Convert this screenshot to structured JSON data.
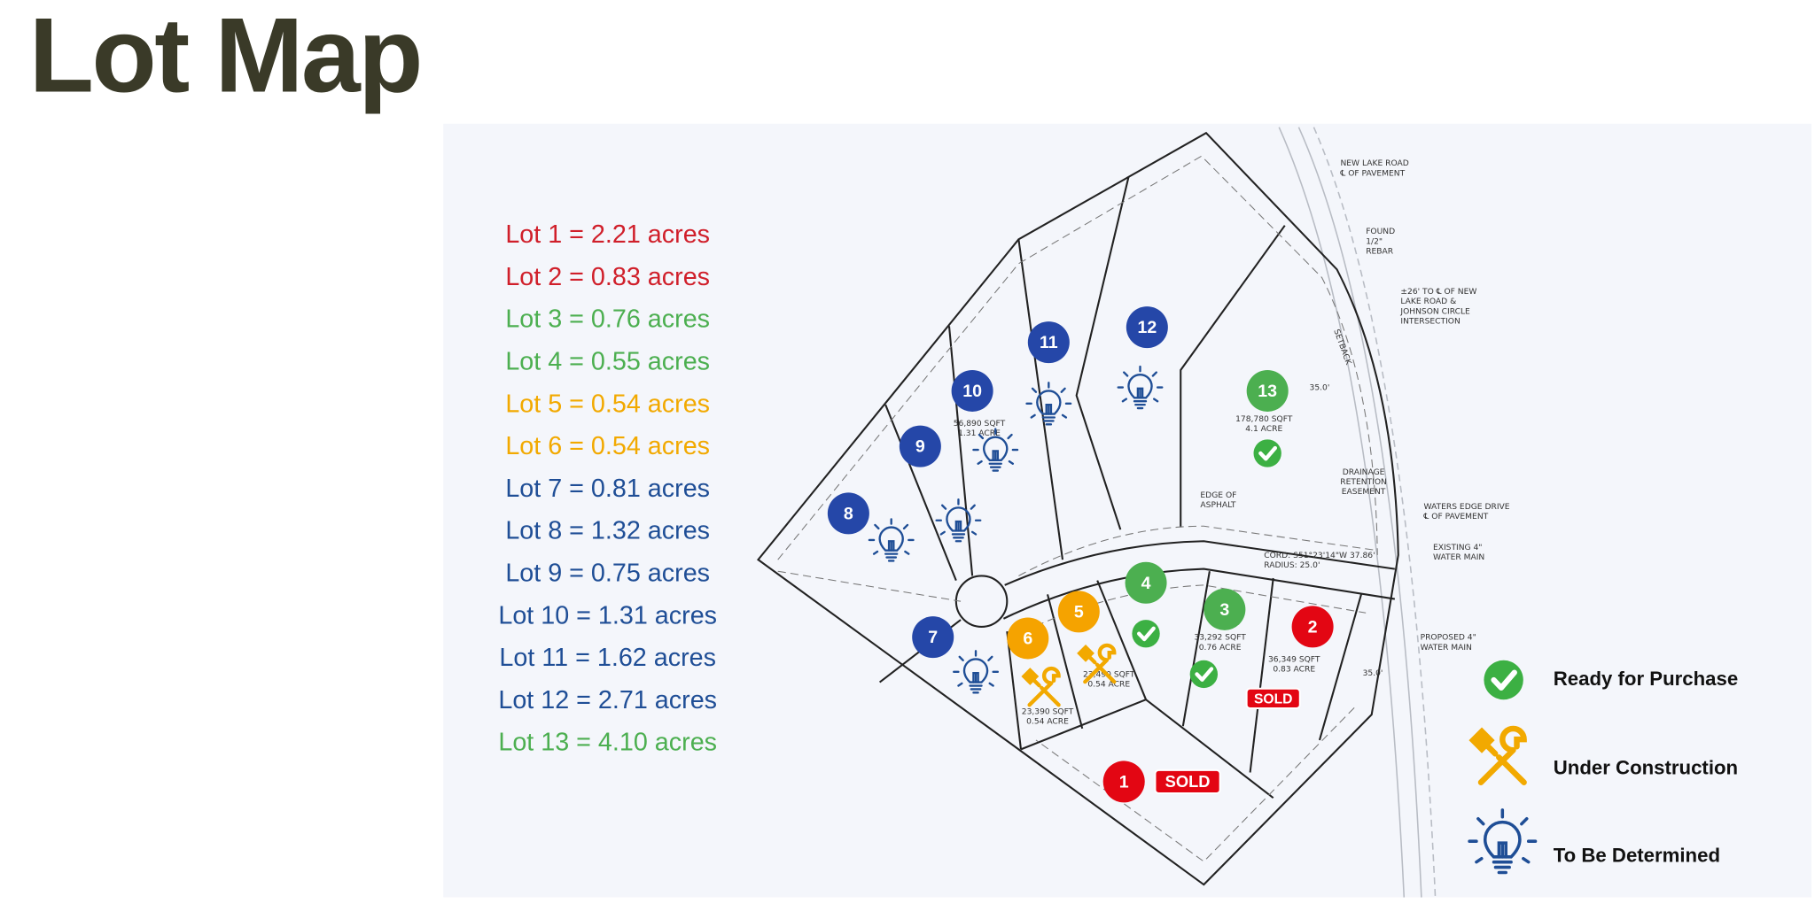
{
  "title": "Lot Map",
  "lots": [
    {
      "text": "Lot 1 = 2.21 acres",
      "color": "#d01f2a"
    },
    {
      "text": "Lot 2 = 0.83 acres",
      "color": "#d01f2a"
    },
    {
      "text": "Lot 3 = 0.76 acres",
      "color": "#4caf50"
    },
    {
      "text": "Lot 4 = 0.55 acres",
      "color": "#4caf50"
    },
    {
      "text": "Lot 5 = 0.54 acres",
      "color": "#f2a900"
    },
    {
      "text": "Lot 6 = 0.54 acres",
      "color": "#f2a900"
    },
    {
      "text": "Lot 7 = 0.81 acres",
      "color": "#1f4e96"
    },
    {
      "text": "Lot 8 = 1.32 acres",
      "color": "#1f4e96"
    },
    {
      "text": "Lot 9 = 0.75 acres",
      "color": "#1f4e96"
    },
    {
      "text": "Lot 10 = 1.31 acres",
      "color": "#1f4e96"
    },
    {
      "text": "Lot 11 = 1.62 acres",
      "color": "#1f4e96"
    },
    {
      "text": "Lot 12 = 2.71 acres",
      "color": "#1f4e96"
    },
    {
      "text": "Lot 13 = 4.10 acres",
      "color": "#4caf50"
    }
  ],
  "markers": [
    {
      "label": "1",
      "color": "#e30613"
    },
    {
      "label": "2",
      "color": "#e30613"
    },
    {
      "label": "3",
      "color": "#4caf50"
    },
    {
      "label": "4",
      "color": "#4caf50"
    },
    {
      "label": "5",
      "color": "#f5a300"
    },
    {
      "label": "6",
      "color": "#f5a300"
    },
    {
      "label": "7",
      "color": "#2547a8"
    },
    {
      "label": "8",
      "color": "#2547a8"
    },
    {
      "label": "9",
      "color": "#2547a8"
    },
    {
      "label": "10",
      "color": "#2547a8"
    },
    {
      "label": "11",
      "color": "#2547a8"
    },
    {
      "label": "12",
      "color": "#2547a8"
    },
    {
      "label": "13",
      "color": "#4caf50"
    }
  ],
  "sold_labels": [
    "SOLD",
    "SOLD"
  ],
  "legend": [
    {
      "label": "Ready for Purchase"
    },
    {
      "label": "Under Construction"
    },
    {
      "label": "To Be Determined"
    }
  ],
  "annotations": [
    {
      "lines": [
        "NEW LAKE ROAD",
        "℄ OF PAVEMENT"
      ]
    },
    {
      "lines": [
        "FOUND",
        "1/2\"",
        "REBAR"
      ]
    },
    {
      "lines": [
        "±26' TO ℄ OF NEW",
        "LAKE ROAD &",
        "JOHNSON CIRCLE",
        "INTERSECTION"
      ]
    },
    {
      "lines": [
        "EDGE OF",
        "ASPHALT"
      ]
    },
    {
      "lines": [
        "WATERS EDGE DRIVE",
        "℄ OF PAVEMENT"
      ]
    },
    {
      "lines": [
        "EXISTING 4\"",
        "WATER MAIN"
      ]
    },
    {
      "lines": [
        "PROPOSED 4\"",
        "WATER MAIN"
      ]
    },
    {
      "lines": [
        "DRAINAGE",
        "RETENTION",
        "EASEMENT"
      ]
    },
    {
      "lines": [
        "CORD: S51°23'14\"W 37.86'",
        "RADIUS: 25.0'"
      ]
    },
    {
      "lines": [
        "178,780 SQFT",
        "4.1 ACRE"
      ]
    },
    {
      "lines": [
        "56,890 SQFT",
        "1.31 ACRE"
      ]
    },
    {
      "lines": [
        "36,349 SQFT",
        "0.83 ACRE"
      ]
    },
    {
      "lines": [
        "33,292 SQFT",
        "0.76 ACRE"
      ]
    },
    {
      "lines": [
        "23,490 SQFT",
        "0.54 ACRE"
      ]
    },
    {
      "lines": [
        "23,390 SQFT",
        "0.54 ACRE"
      ]
    },
    {
      "lines": [
        "35.0'"
      ]
    },
    {
      "lines": [
        "35.0'"
      ]
    },
    {
      "lines": [
        "SETBACK"
      ]
    }
  ]
}
